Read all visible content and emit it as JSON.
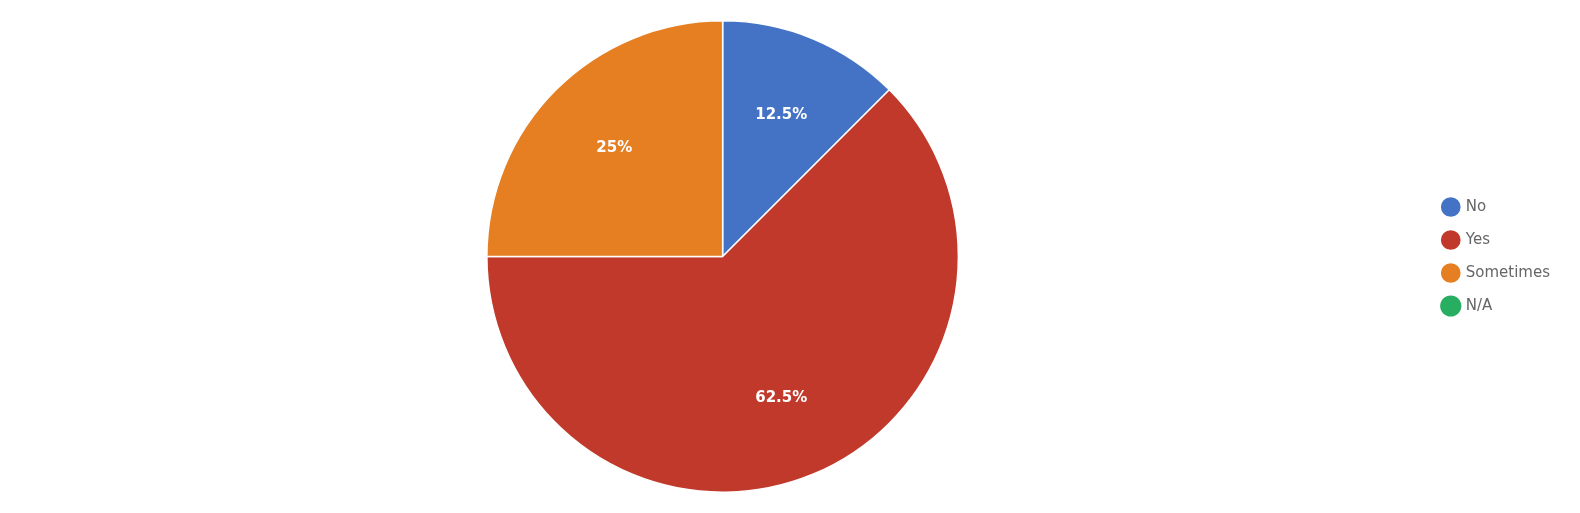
{
  "chart_data": {
    "type": "pie",
    "categories": [
      "No",
      "Yes",
      "Sometimes",
      "N/A"
    ],
    "values": [
      12.5,
      62.5,
      25.0,
      0.0
    ],
    "value_labels": [
      "12.5%",
      "62.5%",
      "25%",
      null
    ],
    "colors": [
      "#4472C4",
      "#C0392B",
      "#E67E22",
      "#27AE60"
    ],
    "data_labels": true,
    "legend": "right"
  }
}
